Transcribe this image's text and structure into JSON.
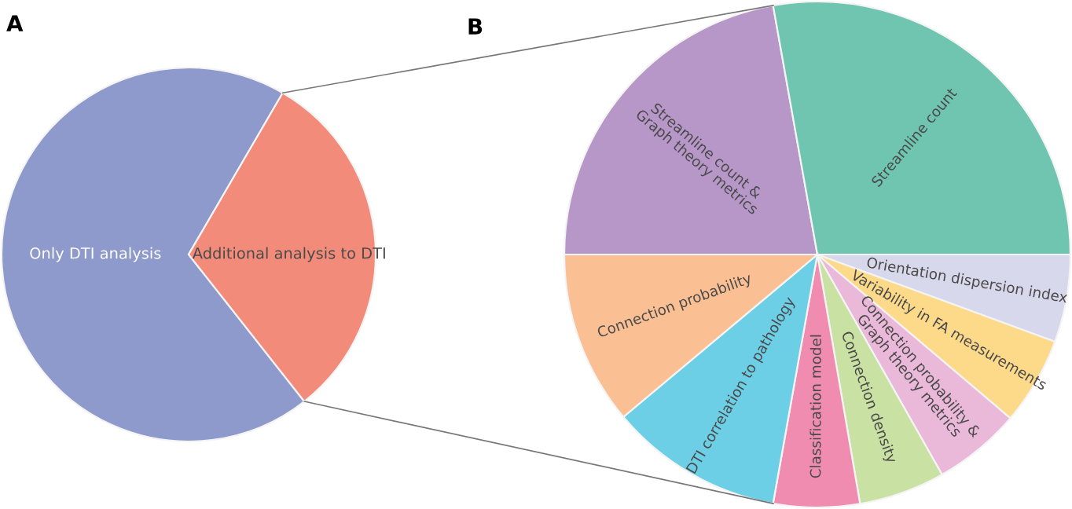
{
  "chart_data": [
    {
      "type": "pie",
      "title": "A",
      "categories": [
        "Only DTI analysis",
        "Additional analysis to DTI"
      ],
      "values": [
        69,
        31
      ],
      "colors": [
        "#8e99cc",
        "#f38b7a"
      ]
    },
    {
      "type": "pie",
      "title": "B",
      "categories": [
        "Streamline count &\nGraph theory metrics",
        "Streamline count",
        "Orientation dispersion index",
        "Variability in FA measurements",
        "Connection probability &\nGraph theory metrics",
        "Connection density",
        "Classification model",
        "DTI correlation to pathology",
        "Connection probability"
      ],
      "values": [
        22.2,
        27.8,
        5.6,
        5.6,
        5.6,
        5.5,
        5.5,
        11.1,
        11.1
      ],
      "colors": [
        "#b797c8",
        "#6fc5b0",
        "#d8d8ec",
        "#fdd98a",
        "#eab8d8",
        "#c9e1a2",
        "#f08cb0",
        "#6ccfe6",
        "#fbbf94"
      ]
    }
  ]
}
